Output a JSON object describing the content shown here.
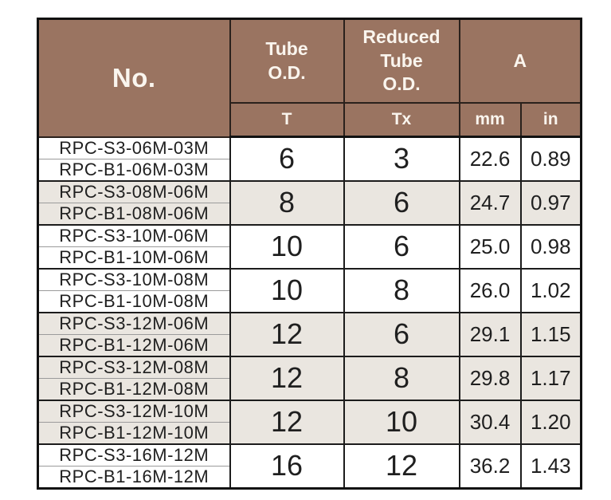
{
  "colors": {
    "header_bg": "#9A7461",
    "header_text": "#FAF5EE",
    "row_shaded_bg": "#EAE6E0",
    "row_plain_bg": "#FFFFFF",
    "body_text": "#1F1F1F",
    "grid_line": "#1C1C1C",
    "pair_divider": "#9B9B9B",
    "page_bg": "#FFFFFF"
  },
  "table": {
    "header": {
      "no": "No.",
      "tube_od": "Tube\nO.D.",
      "reduced_tube_od": "Reduced\nTube\nO.D.",
      "a": "A",
      "sub_t": "T",
      "sub_tx": "Tx",
      "sub_mm": "mm",
      "sub_in": "in"
    },
    "groups": [
      {
        "part_numbers": [
          "RPC-S3-06M-03M",
          "RPC-B1-06M-03M"
        ],
        "tube_od": "6",
        "reduced_tube_od": "3",
        "a_mm": "22.6",
        "a_in": "0.89",
        "shaded": false
      },
      {
        "part_numbers": [
          "RPC-S3-08M-06M",
          "RPC-B1-08M-06M"
        ],
        "tube_od": "8",
        "reduced_tube_od": "6",
        "a_mm": "24.7",
        "a_in": "0.97",
        "shaded": true
      },
      {
        "part_numbers": [
          "RPC-S3-10M-06M",
          "RPC-B1-10M-06M"
        ],
        "tube_od": "10",
        "reduced_tube_od": "6",
        "a_mm": "25.0",
        "a_in": "0.98",
        "shaded": false
      },
      {
        "part_numbers": [
          "RPC-S3-10M-08M",
          "RPC-B1-10M-08M"
        ],
        "tube_od": "10",
        "reduced_tube_od": "8",
        "a_mm": "26.0",
        "a_in": "1.02",
        "shaded": false
      },
      {
        "part_numbers": [
          "RPC-S3-12M-06M",
          "RPC-B1-12M-06M"
        ],
        "tube_od": "12",
        "reduced_tube_od": "6",
        "a_mm": "29.1",
        "a_in": "1.15",
        "shaded": true
      },
      {
        "part_numbers": [
          "RPC-S3-12M-08M",
          "RPC-B1-12M-08M"
        ],
        "tube_od": "12",
        "reduced_tube_od": "8",
        "a_mm": "29.8",
        "a_in": "1.17",
        "shaded": true
      },
      {
        "part_numbers": [
          "RPC-S3-12M-10M",
          "RPC-B1-12M-10M"
        ],
        "tube_od": "12",
        "reduced_tube_od": "10",
        "a_mm": "30.4",
        "a_in": "1.20",
        "shaded": true
      },
      {
        "part_numbers": [
          "RPC-S3-16M-12M",
          "RPC-B1-16M-12M"
        ],
        "tube_od": "16",
        "reduced_tube_od": "12",
        "a_mm": "36.2",
        "a_in": "1.43",
        "shaded": false
      }
    ]
  }
}
